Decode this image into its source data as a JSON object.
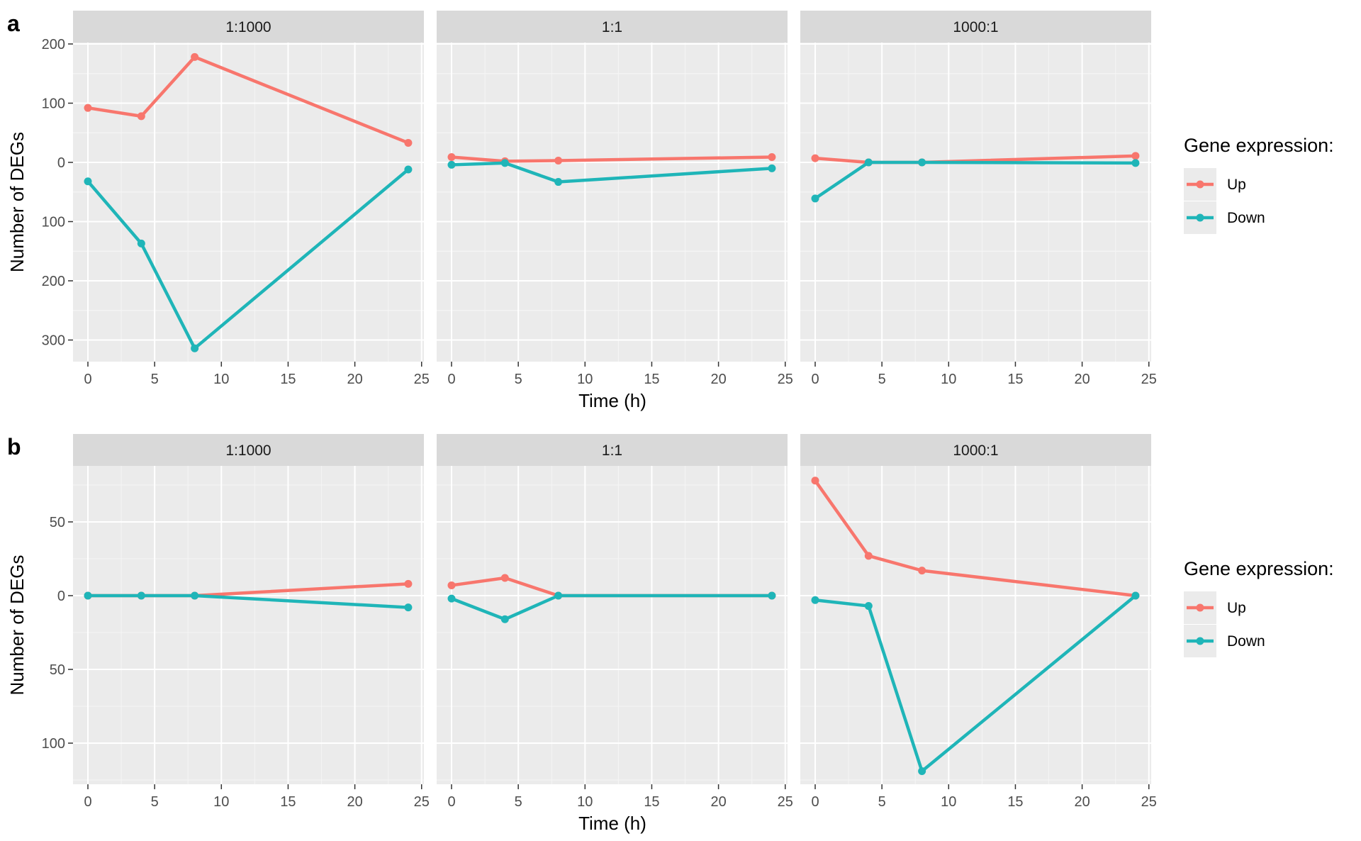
{
  "legend_title": "Gene expression:",
  "colors": {
    "up": "#F8766D",
    "down": "#1FB5B8",
    "panel_bg": "#EBEBEB",
    "strip_bg": "#D9D9D9"
  },
  "chart_data": [
    {
      "type": "line",
      "panel_label": "a",
      "facets": [
        "1:1000",
        "1:1",
        "1000:1"
      ],
      "xlabel": "Time (h)",
      "ylabel": "Number of DEGs",
      "xlim": [
        0,
        25
      ],
      "x_ticks": [
        "0",
        "5",
        "10",
        "15",
        "20",
        "25"
      ],
      "ylim": [
        -330,
        200
      ],
      "y_ticks": [
        200,
        100,
        0,
        -100,
        -200,
        -300
      ],
      "y_tick_labels": [
        "200",
        "100",
        "0",
        "100",
        "200",
        "300"
      ],
      "legend": [
        "Up",
        "Down"
      ],
      "x": [
        0,
        4,
        8,
        24
      ],
      "panels": [
        {
          "facet": "1:1000",
          "series": [
            {
              "name": "Up",
              "values": [
                92,
                78,
                178,
                33
              ]
            },
            {
              "name": "Down",
              "values": [
                -32,
                -137,
                -314,
                -12
              ]
            }
          ]
        },
        {
          "facet": "1:1",
          "series": [
            {
              "name": "Up",
              "values": [
                9,
                2,
                3,
                9
              ]
            },
            {
              "name": "Down",
              "values": [
                -4,
                -1,
                -33,
                -10
              ]
            }
          ]
        },
        {
          "facet": "1000:1",
          "series": [
            {
              "name": "Up",
              "values": [
                7,
                0,
                0,
                11
              ]
            },
            {
              "name": "Down",
              "values": [
                -61,
                0,
                0,
                -1
              ]
            }
          ]
        }
      ]
    },
    {
      "type": "line",
      "panel_label": "b",
      "facets": [
        "1:1000",
        "1:1",
        "1000:1"
      ],
      "xlabel": "Time (h)",
      "ylabel": "Number of DEGs",
      "xlim": [
        0,
        25
      ],
      "x_ticks": [
        "0",
        "5",
        "10",
        "15",
        "20",
        "25"
      ],
      "ylim": [
        -128,
        87
      ],
      "y_ticks": [
        50,
        0,
        -50,
        -100
      ],
      "y_tick_labels": [
        "50",
        "0",
        "50",
        "100"
      ],
      "legend": [
        "Up",
        "Down"
      ],
      "x": [
        0,
        4,
        8,
        24
      ],
      "panels": [
        {
          "facet": "1:1000",
          "series": [
            {
              "name": "Up",
              "values": [
                0,
                0,
                0,
                8
              ]
            },
            {
              "name": "Down",
              "values": [
                0,
                0,
                0,
                -8
              ]
            }
          ]
        },
        {
          "facet": "1:1",
          "series": [
            {
              "name": "Up",
              "values": [
                7,
                12,
                0,
                0
              ]
            },
            {
              "name": "Down",
              "values": [
                -2,
                -16,
                0,
                0
              ]
            }
          ]
        },
        {
          "facet": "1000:1",
          "series": [
            {
              "name": "Up",
              "values": [
                78,
                27,
                17,
                0
              ]
            },
            {
              "name": "Down",
              "values": [
                -3,
                -7,
                -119,
                0
              ]
            }
          ]
        }
      ]
    }
  ]
}
